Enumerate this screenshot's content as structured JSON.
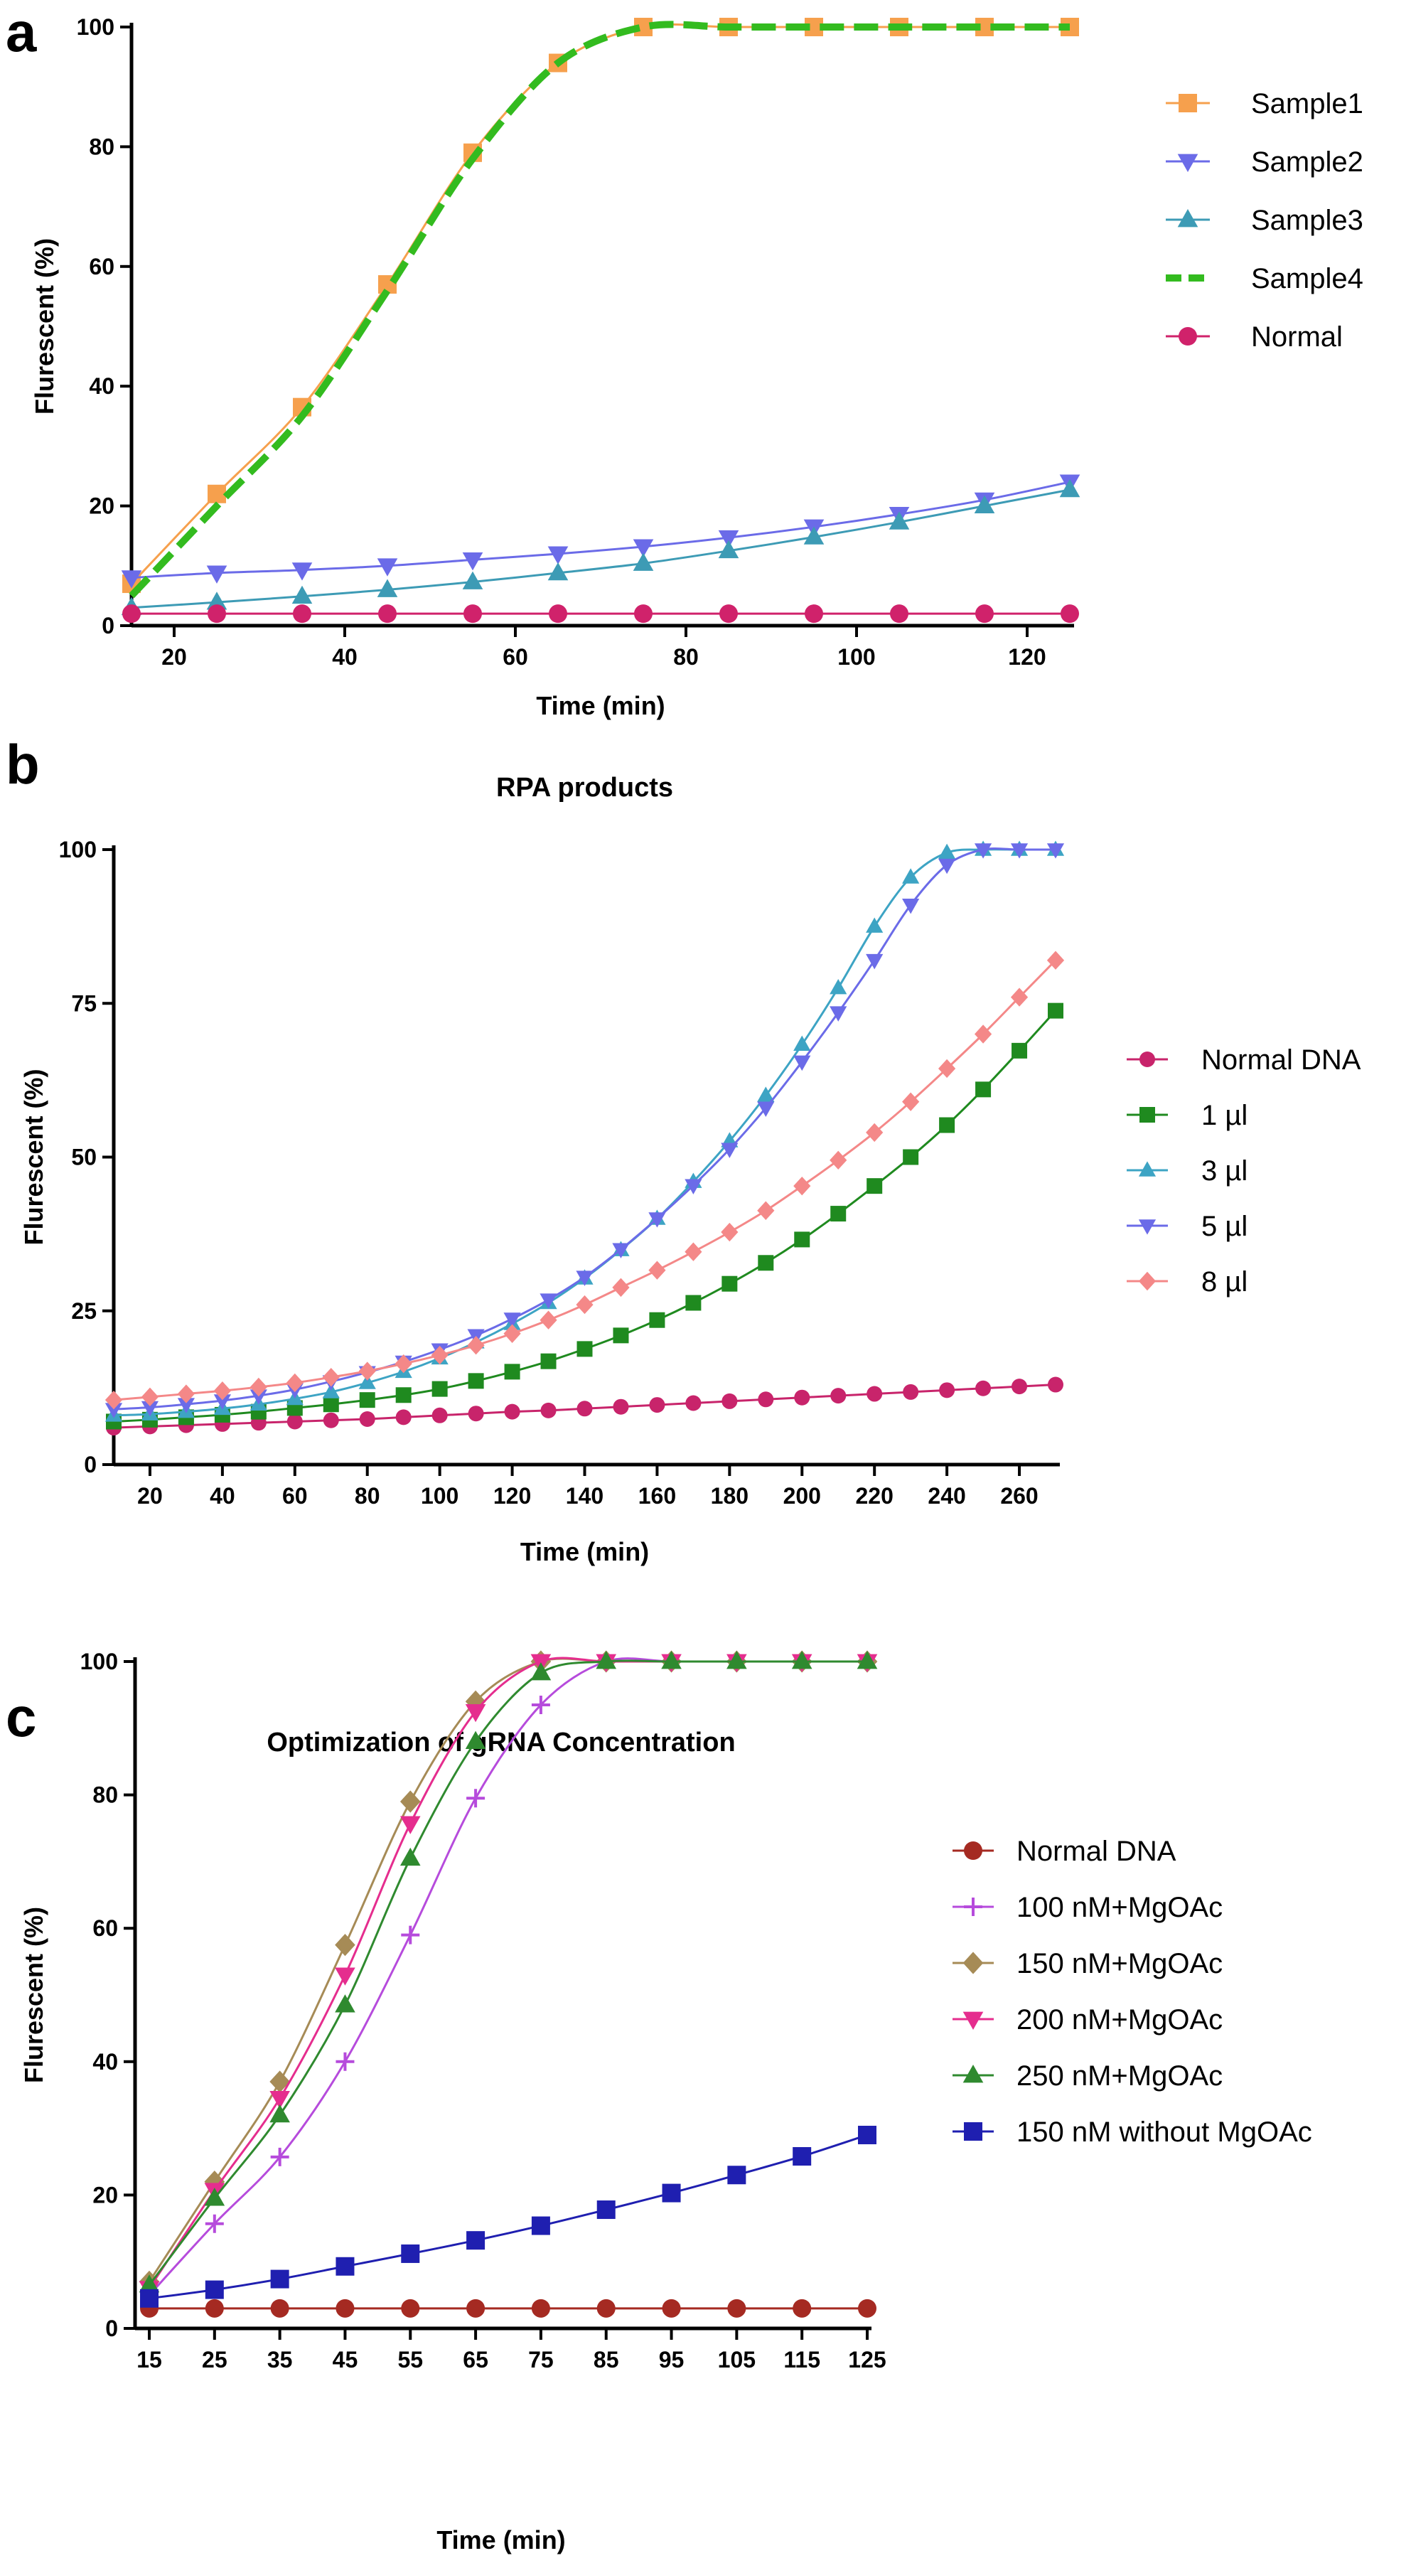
{
  "panels": {
    "a": {
      "letter": "a"
    },
    "b": {
      "letter": "b"
    },
    "c": {
      "letter": "c"
    }
  },
  "chart_data": [
    {
      "id": "a",
      "type": "line",
      "title": "",
      "xlabel": "Time (min)",
      "ylabel": "Flurescent (%)",
      "xlim": [
        15,
        125
      ],
      "ylim": [
        0,
        100
      ],
      "xticks": [
        20,
        40,
        60,
        80,
        100,
        120
      ],
      "yticks": [
        0,
        20,
        40,
        60,
        80,
        100
      ],
      "grid": false,
      "legend_position": "right",
      "x": [
        15,
        25,
        35,
        45,
        55,
        65,
        75,
        85,
        95,
        105,
        115,
        125
      ],
      "series": [
        {
          "name": "Sample1",
          "color": "#f6a04d",
          "marker": "square",
          "line": "solid",
          "values": [
            7,
            22,
            36.5,
            57,
            79,
            94,
            100,
            100,
            100,
            100,
            100,
            100
          ]
        },
        {
          "name": "Sample2",
          "color": "#6b6be8",
          "marker": "triangle-down",
          "line": "solid",
          "values": [
            8,
            8.8,
            9.3,
            10,
            11,
            12,
            13.2,
            14.7,
            16.5,
            18.6,
            21,
            24
          ]
        },
        {
          "name": "Sample3",
          "color": "#3d9bb5",
          "marker": "triangle-up",
          "line": "solid",
          "values": [
            3,
            3.9,
            4.9,
            6,
            7.3,
            8.8,
            10.4,
            12.5,
            14.8,
            17.3,
            20,
            22.7
          ]
        },
        {
          "name": "Sample4",
          "color": "#33bb1f",
          "marker": "none",
          "line": "dashed",
          "values": [
            5,
            20,
            35,
            56,
            78,
            94,
            100,
            100,
            100,
            100,
            100,
            100
          ]
        },
        {
          "name": "Normal",
          "color": "#d0226b",
          "marker": "circle",
          "line": "solid",
          "values": [
            2,
            2,
            2,
            2,
            2,
            2,
            2,
            2,
            2,
            2,
            2,
            2
          ]
        }
      ]
    },
    {
      "id": "b",
      "type": "line",
      "title": "RPA products",
      "xlabel": "Time (min)",
      "ylabel": "Flurescent (%)",
      "xlim": [
        10,
        270
      ],
      "ylim": [
        0,
        100
      ],
      "xticks": [
        20,
        40,
        60,
        80,
        100,
        120,
        140,
        160,
        180,
        200,
        220,
        240,
        260
      ],
      "yticks": [
        0,
        25,
        50,
        75,
        100
      ],
      "grid": false,
      "legend_position": "right",
      "x": [
        10,
        20,
        30,
        40,
        50,
        60,
        70,
        80,
        90,
        100,
        110,
        120,
        130,
        140,
        150,
        160,
        170,
        180,
        190,
        200,
        210,
        220,
        230,
        240,
        250,
        260,
        270
      ],
      "series": [
        {
          "name": "Normal DNA",
          "color": "#c8246b",
          "marker": "circle",
          "values": [
            6,
            6.2,
            6.4,
            6.6,
            6.8,
            7,
            7.2,
            7.4,
            7.7,
            8,
            8.3,
            8.6,
            8.8,
            9.1,
            9.4,
            9.7,
            10,
            10.3,
            10.6,
            10.9,
            11.2,
            11.5,
            11.8,
            12.1,
            12.4,
            12.7,
            13
          ]
        },
        {
          "name": "1 µl",
          "color": "#1f8a1f",
          "marker": "square",
          "values": [
            7,
            7.3,
            7.7,
            8.1,
            8.6,
            9.2,
            9.8,
            10.5,
            11.3,
            12.3,
            13.6,
            15.1,
            16.8,
            18.8,
            21,
            23.5,
            26.3,
            29.4,
            32.8,
            36.6,
            40.8,
            45.3,
            50,
            55.2,
            61,
            67.3,
            73.8
          ]
        },
        {
          "name": "3 µl",
          "color": "#3da4c4",
          "marker": "triangle-up",
          "values": [
            8,
            8.2,
            8.6,
            9.1,
            9.8,
            10.7,
            11.8,
            13.3,
            15.1,
            17.3,
            19.9,
            22.9,
            26.3,
            30.3,
            34.9,
            40,
            46,
            52.6,
            60,
            68.3,
            77.5,
            87.5,
            95.5,
            99.5,
            100,
            100,
            100
          ]
        },
        {
          "name": "5 µl",
          "color": "#6b6be8",
          "marker": "triangle-down",
          "values": [
            9,
            9.3,
            9.8,
            10.4,
            11.2,
            12.2,
            13.5,
            15,
            16.7,
            18.7,
            21,
            23.7,
            26.8,
            30.5,
            35,
            40,
            45.4,
            51.3,
            58,
            65.5,
            73.5,
            82,
            91,
            97.5,
            100,
            100,
            100
          ]
        },
        {
          "name": "8 µl",
          "color": "#f48888",
          "marker": "diamond",
          "values": [
            10.5,
            11,
            11.5,
            12,
            12.6,
            13.3,
            14.2,
            15.2,
            16.4,
            17.8,
            19.4,
            21.3,
            23.5,
            26,
            28.8,
            31.6,
            34.6,
            37.8,
            41.3,
            45.3,
            49.5,
            54,
            59,
            64.4,
            70,
            76,
            82
          ]
        }
      ]
    },
    {
      "id": "c",
      "type": "line",
      "title": "Optimization of gRNA Concentration",
      "xlabel": "Time (min)",
      "ylabel": "Flurescent (%)",
      "xlim": [
        15,
        125
      ],
      "ylim": [
        0,
        100
      ],
      "xticks": [
        15,
        25,
        35,
        45,
        55,
        65,
        75,
        85,
        95,
        105,
        115,
        125
      ],
      "yticks": [
        0,
        20,
        40,
        60,
        80,
        100
      ],
      "grid": false,
      "legend_position": "right",
      "x": [
        15,
        25,
        35,
        45,
        55,
        65,
        75,
        85,
        95,
        105,
        115,
        125
      ],
      "series": [
        {
          "name": "Normal DNA",
          "color": "#a52a22",
          "marker": "circle",
          "values": [
            3,
            3,
            3,
            3,
            3,
            3,
            3,
            3,
            3,
            3,
            3,
            3
          ]
        },
        {
          "name": "100 nM+MgOAc",
          "color": "#b64bdc",
          "marker": "plus",
          "values": [
            5,
            15.7,
            25.7,
            40,
            59,
            79.5,
            93.5,
            100,
            100,
            100,
            100,
            100
          ]
        },
        {
          "name": "150 nM+MgOAc",
          "color": "#a68b56",
          "marker": "diamond",
          "values": [
            7,
            22,
            37,
            57.5,
            79,
            94,
            100,
            100,
            100,
            100,
            100,
            100
          ]
        },
        {
          "name": "200 nM+MgOAc",
          "color": "#e52d8e",
          "marker": "triangle-down",
          "values": [
            6,
            20.7,
            34.5,
            53,
            75.7,
            92.5,
            100,
            100,
            100,
            100,
            100,
            100
          ]
        },
        {
          "name": "250 nM+MgOAc",
          "color": "#2f8a2f",
          "marker": "triangle-up",
          "values": [
            6.5,
            19.5,
            32,
            48.5,
            70.5,
            88,
            98.3,
            100,
            100,
            100,
            100,
            100
          ]
        },
        {
          "name": "150 nM without MgOAc",
          "color": "#1f1fb0",
          "marker": "square",
          "values": [
            4.5,
            5.8,
            7.4,
            9.3,
            11.2,
            13.2,
            15.4,
            17.8,
            20.3,
            23,
            25.8,
            29
          ]
        }
      ]
    }
  ]
}
